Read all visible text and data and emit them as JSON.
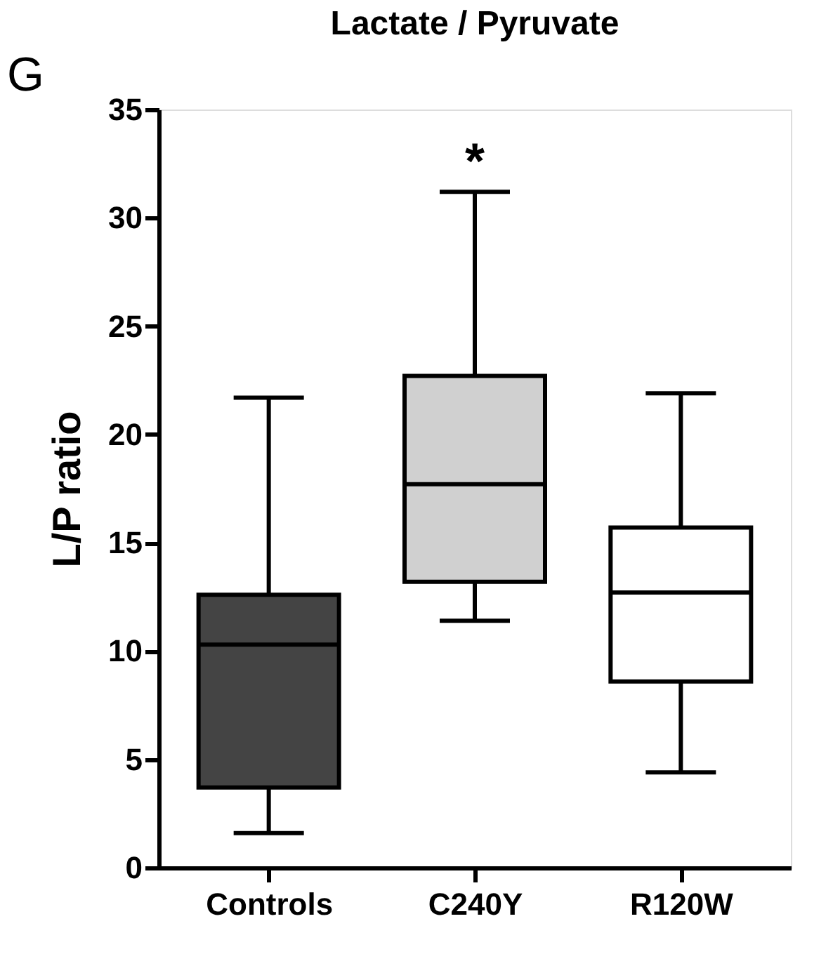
{
  "chart_data": {
    "type": "box",
    "title": "Lactate / Pyruvate",
    "ylabel": "L/P ratio",
    "categories": [
      "Controls",
      "C240Y",
      "R120W"
    ],
    "boxes": [
      {
        "low": 1.6,
        "q1": 3.7,
        "median": 10.3,
        "q3": 12.6,
        "high": 21.7
      },
      {
        "low": 11.4,
        "q1": 13.2,
        "median": 17.7,
        "q3": 22.7,
        "high": 31.2
      },
      {
        "low": 4.4,
        "q1": 8.6,
        "median": 12.7,
        "q3": 15.7,
        "high": 21.9
      }
    ],
    "colors": [
      "#444444",
      "#d0d0d0",
      "#ffffff"
    ],
    "ylim": [
      0,
      35
    ],
    "yticks": [
      0,
      5,
      10,
      15,
      20,
      25,
      30,
      35
    ],
    "grid": false,
    "annotations": [
      "*",
      "G"
    ]
  }
}
